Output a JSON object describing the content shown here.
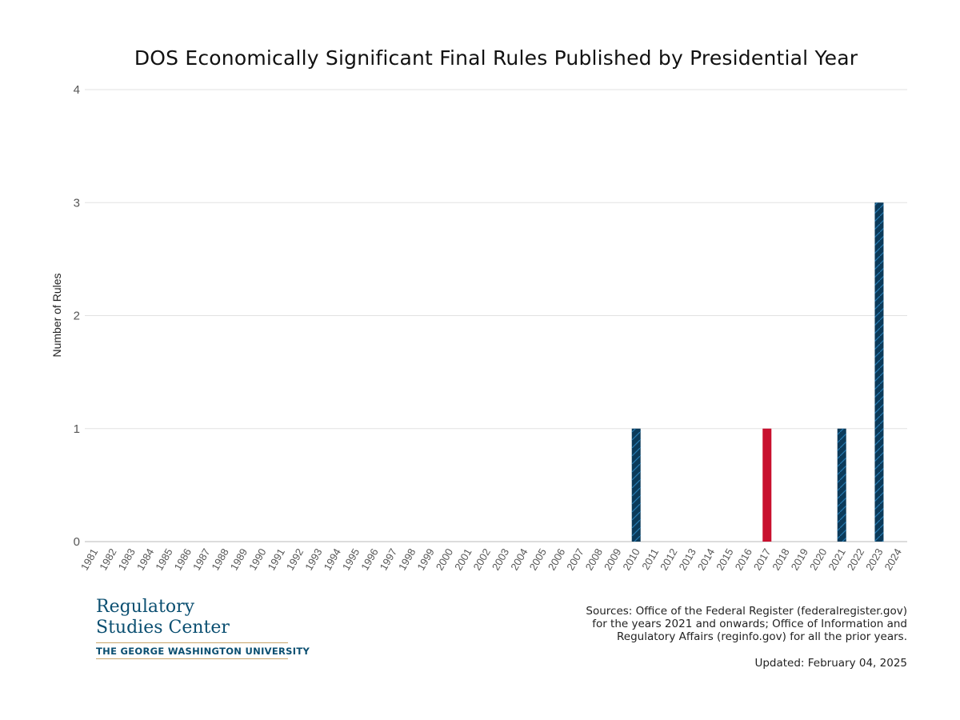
{
  "chart_data": {
    "type": "bar",
    "title": "DOS Economically Significant Final Rules Published by Presidential Year",
    "xlabel": "",
    "ylabel": "Number of Rules",
    "ylim": [
      0,
      4
    ],
    "yticks": [
      0,
      1,
      2,
      3,
      4
    ],
    "grid": true,
    "categories": [
      "1981",
      "1982",
      "1983",
      "1984",
      "1985",
      "1986",
      "1987",
      "1988",
      "1989",
      "1990",
      "1991",
      "1992",
      "1993",
      "1994",
      "1995",
      "1996",
      "1997",
      "1998",
      "1999",
      "2000",
      "2001",
      "2002",
      "2003",
      "2004",
      "2005",
      "2006",
      "2007",
      "2008",
      "2009",
      "2010",
      "2011",
      "2012",
      "2013",
      "2014",
      "2015",
      "2016",
      "2017",
      "2018",
      "2019",
      "2020",
      "2021",
      "2022",
      "2023",
      "2024"
    ],
    "values": [
      0,
      0,
      0,
      0,
      0,
      0,
      0,
      0,
      0,
      0,
      0,
      0,
      0,
      0,
      0,
      0,
      0,
      0,
      0,
      0,
      0,
      0,
      0,
      0,
      0,
      0,
      0,
      0,
      0,
      1,
      0,
      0,
      0,
      0,
      0,
      0,
      1,
      0,
      0,
      0,
      1,
      0,
      3,
      0
    ],
    "bar_colors": {
      "2010": "#0b3a5a",
      "2017": "#c8102e",
      "2021": "#0b3a5a",
      "2023": "#0b3a5a"
    },
    "hatched_bars": [
      "2010",
      "2021",
      "2023"
    ]
  },
  "logo": {
    "line1": "Regulatory",
    "line2": "Studies Center",
    "line3": "THE GEORGE WASHINGTON UNIVERSITY"
  },
  "footer": {
    "sources": [
      "Sources: Office of the Federal Register (federalregister.gov)",
      "for the years 2021 and onwards; Office of Information and",
      "Regulatory Affairs (reginfo.gov) for all the prior years."
    ],
    "updated": "Updated: February 04, 2025"
  }
}
